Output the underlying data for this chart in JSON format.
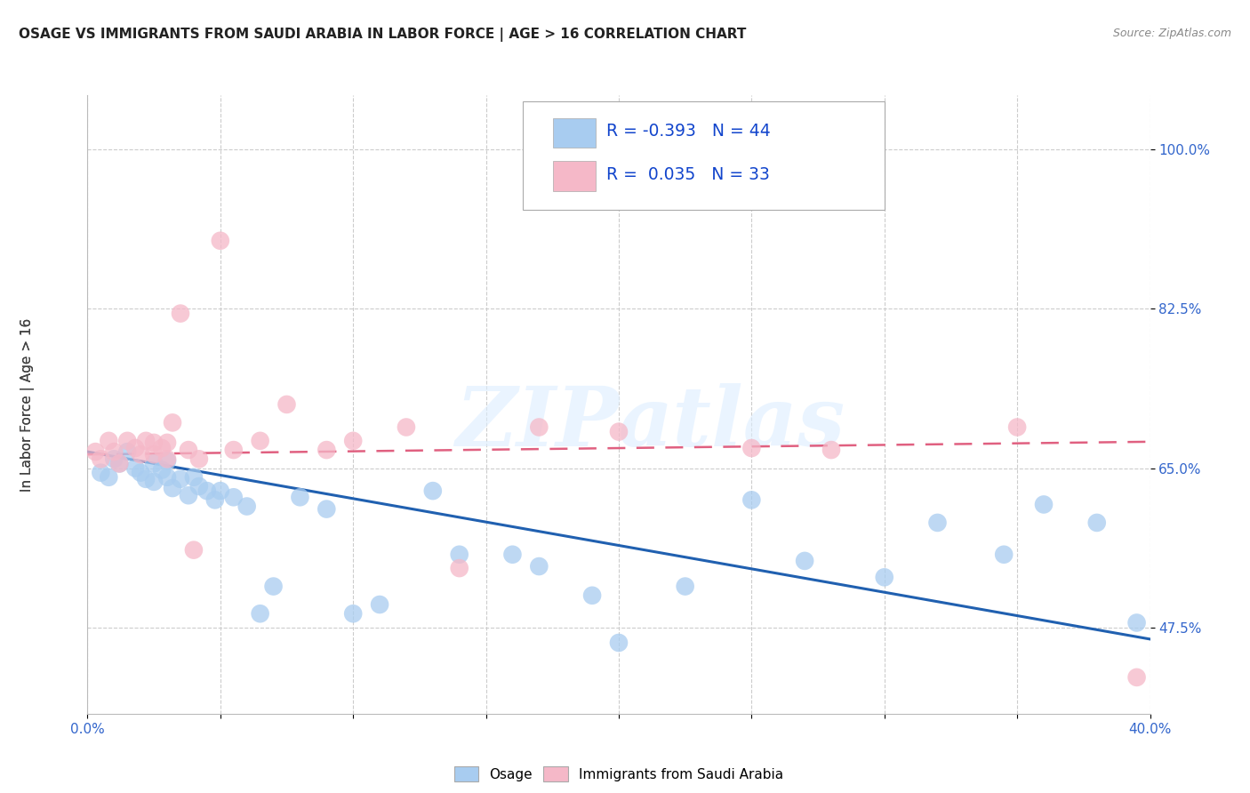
{
  "title": "OSAGE VS IMMIGRANTS FROM SAUDI ARABIA IN LABOR FORCE | AGE > 16 CORRELATION CHART",
  "source": "Source: ZipAtlas.com",
  "legend_label1": "Osage",
  "legend_label2": "Immigrants from Saudi Arabia",
  "R1": "-0.393",
  "N1": "44",
  "R2": "0.035",
  "N2": "33",
  "watermark": "ZIPatlas",
  "xmin": 0.0,
  "xmax": 0.4,
  "ymin": 0.38,
  "ymax": 1.06,
  "color_blue": "#A8CCF0",
  "color_pink": "#F5B8C8",
  "color_blue_line": "#2060B0",
  "color_pink_line": "#E06080",
  "blue_scatter_x": [
    0.005,
    0.008,
    0.01,
    0.012,
    0.015,
    0.018,
    0.02,
    0.022,
    0.025,
    0.025,
    0.028,
    0.03,
    0.03,
    0.032,
    0.035,
    0.038,
    0.04,
    0.042,
    0.045,
    0.048,
    0.05,
    0.055,
    0.06,
    0.065,
    0.07,
    0.08,
    0.09,
    0.1,
    0.11,
    0.13,
    0.14,
    0.16,
    0.17,
    0.19,
    0.2,
    0.225,
    0.25,
    0.27,
    0.3,
    0.32,
    0.345,
    0.36,
    0.38,
    0.395
  ],
  "blue_scatter_y": [
    0.645,
    0.64,
    0.66,
    0.655,
    0.668,
    0.65,
    0.645,
    0.638,
    0.655,
    0.635,
    0.648,
    0.658,
    0.64,
    0.628,
    0.638,
    0.62,
    0.64,
    0.63,
    0.625,
    0.615,
    0.625,
    0.618,
    0.608,
    0.49,
    0.52,
    0.618,
    0.605,
    0.49,
    0.5,
    0.625,
    0.555,
    0.555,
    0.542,
    0.51,
    0.458,
    0.52,
    0.615,
    0.548,
    0.53,
    0.59,
    0.555,
    0.61,
    0.59,
    0.48
  ],
  "pink_scatter_x": [
    0.003,
    0.005,
    0.008,
    0.01,
    0.012,
    0.015,
    0.018,
    0.02,
    0.022,
    0.025,
    0.025,
    0.028,
    0.03,
    0.03,
    0.032,
    0.035,
    0.038,
    0.04,
    0.042,
    0.05,
    0.055,
    0.065,
    0.075,
    0.09,
    0.1,
    0.12,
    0.14,
    0.17,
    0.2,
    0.25,
    0.28,
    0.35,
    0.395
  ],
  "pink_scatter_y": [
    0.668,
    0.66,
    0.68,
    0.668,
    0.655,
    0.68,
    0.672,
    0.665,
    0.68,
    0.678,
    0.665,
    0.672,
    0.678,
    0.66,
    0.7,
    0.82,
    0.67,
    0.56,
    0.66,
    0.9,
    0.67,
    0.68,
    0.72,
    0.67,
    0.68,
    0.695,
    0.54,
    0.695,
    0.69,
    0.672,
    0.67,
    0.695,
    0.42
  ],
  "blue_trendline_x": [
    0.0,
    0.4
  ],
  "blue_trendline_y": [
    0.668,
    0.462
  ],
  "pink_trendline_x": [
    0.0,
    0.4
  ],
  "pink_trendline_y": [
    0.665,
    0.679
  ]
}
